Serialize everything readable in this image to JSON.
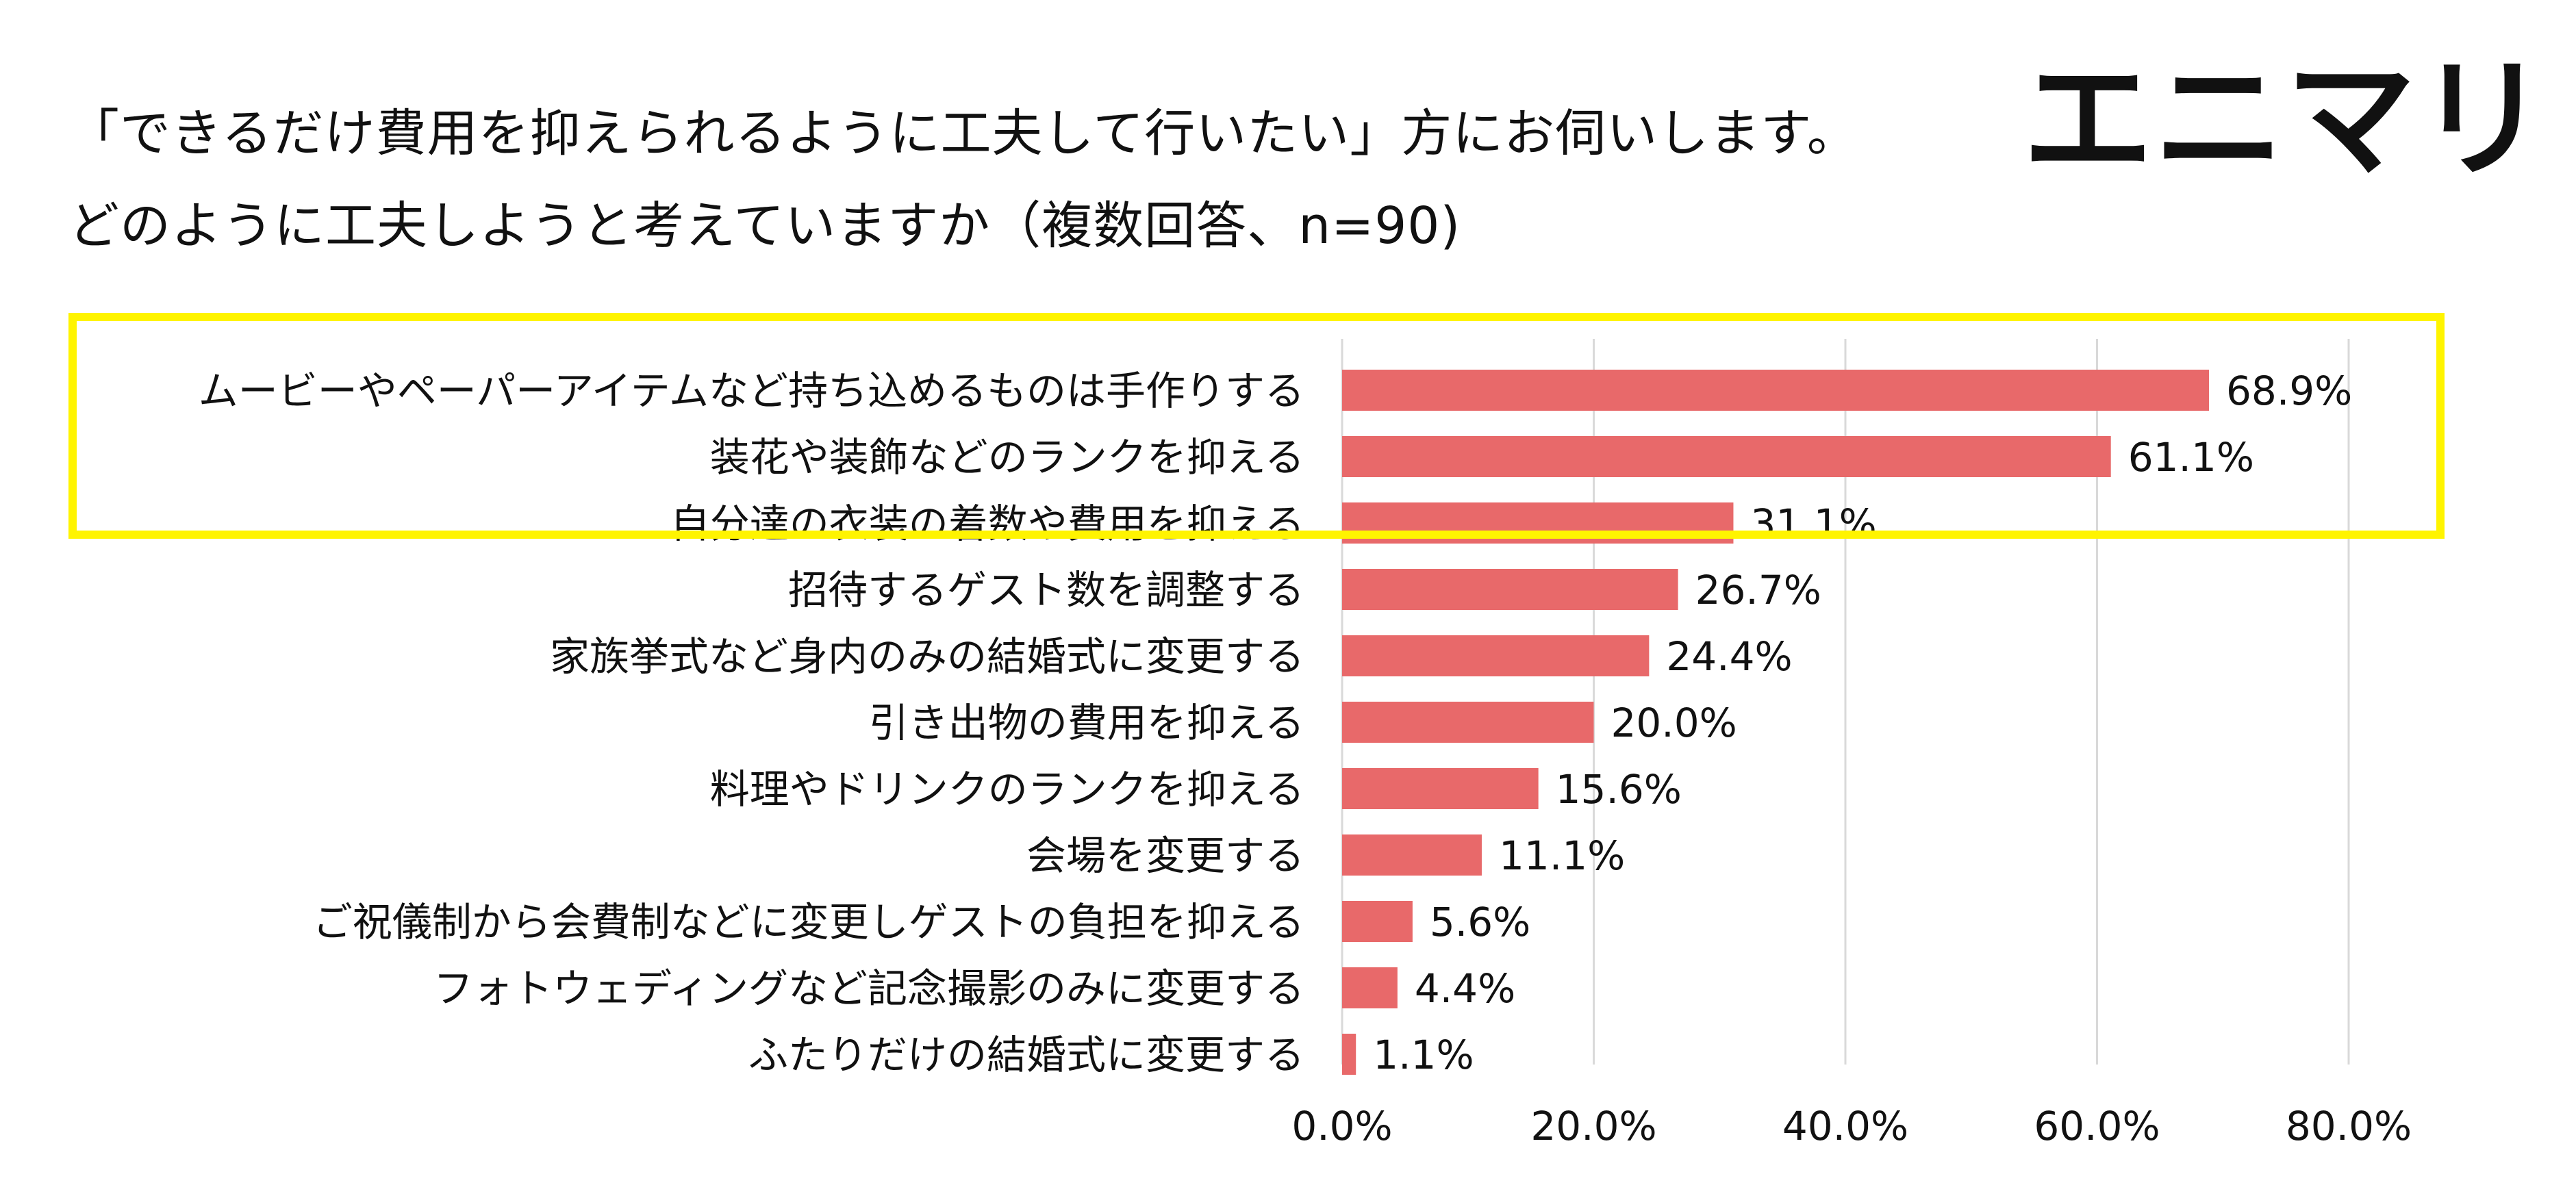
{
  "title": {
    "line1": "「できるだけ費用を抑えられるように工夫して行いたい」方にお伺いします。",
    "line2": "どのように工夫しようと考えていますか（複数回答、n=90)"
  },
  "logo": "エニマリ",
  "colors": {
    "bar": "#e8696a",
    "highlight": "#fff400",
    "grid": "#d9d9d9"
  },
  "chart_data": {
    "type": "bar",
    "orientation": "horizontal",
    "categories": [
      "ムービーやペーパーアイテムなど持ち込めるものは手作りする",
      "装花や装飾などのランクを抑える",
      "自分達の衣装の着数や費用を抑える",
      "招待するゲスト数を調整する",
      "家族挙式など身内のみの結婚式に変更する",
      "引き出物の費用を抑える",
      "料理やドリンクのランクを抑える",
      "会場を変更する",
      "ご祝儀制から会費制などに変更しゲストの負担を抑える",
      "フォトウェディングなど記念撮影のみに変更する",
      "ふたりだけの結婚式に変更する"
    ],
    "values": [
      68.9,
      61.1,
      31.1,
      26.7,
      24.4,
      20.0,
      15.6,
      11.1,
      5.6,
      4.4,
      1.1
    ],
    "value_labels": [
      "68.9%",
      "61.1%",
      "31.1%",
      "26.7%",
      "24.4%",
      "20.0%",
      "15.6%",
      "11.1%",
      "5.6%",
      "4.4%",
      "1.1%"
    ],
    "xlim": [
      0,
      80
    ],
    "x_ticks": [
      0,
      20,
      40,
      60,
      80
    ],
    "x_tick_labels": [
      "0.0%",
      "20.0%",
      "40.0%",
      "60.0%",
      "80.0%"
    ],
    "highlighted_count": 3,
    "grid": true
  }
}
